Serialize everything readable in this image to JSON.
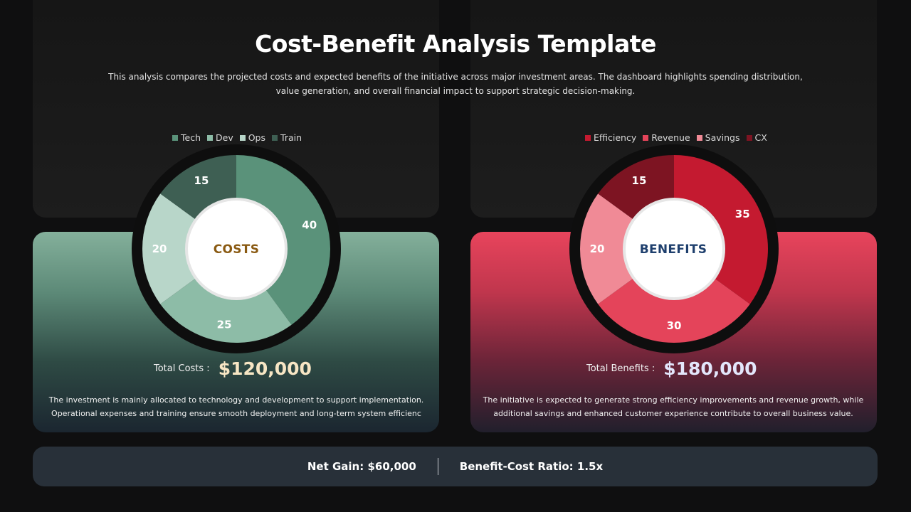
{
  "header": {
    "title": "Cost-Benefit Analysis Template",
    "subtitle": "This analysis compares the projected costs and expected benefits of the initiative across major investment areas. The dashboard highlights spending distribution, value generation, and overall financial impact to support strategic decision-making."
  },
  "costs": {
    "center_label": "COSTS",
    "total_label": "Total Costs :",
    "total_value": "$120,000",
    "description": "The investment is mainly allocated to technology and development to support implementation. Operational expenses and training ensure smooth deployment and long-term system efficienc",
    "accent_color": "#8a5a12",
    "value_color": "#f7e6c4"
  },
  "benefits": {
    "center_label": "BENEFITS",
    "total_label": "Total Benefits :",
    "total_value": "$180,000",
    "description": "The initiative is expected to generate strong efficiency improvements and revenue growth, while additional savings and enhanced customer experience contribute to overall business value.",
    "accent_color": "#1e3f6d",
    "value_color": "#e3e6fb"
  },
  "footer": {
    "net_gain": "Net Gain: $60,000",
    "ratio": "Benefit-Cost Ratio: 1.5x"
  },
  "chart_data": [
    {
      "type": "pie",
      "categories": [
        "Tech",
        "Dev",
        "Ops",
        "Train"
      ],
      "values": [
        40,
        25,
        20,
        15
      ],
      "colors": [
        "#5a927a",
        "#8dbca7",
        "#b8d6c9",
        "#3e5f53"
      ],
      "legend": "top"
    },
    {
      "type": "pie",
      "categories": [
        "Efficiency",
        "Revenue",
        "Savings",
        "CX"
      ],
      "values": [
        35,
        30,
        20,
        15
      ],
      "colors": [
        "#c41a30",
        "#e4445a",
        "#f08a96",
        "#7d1422"
      ],
      "legend": "top"
    }
  ]
}
